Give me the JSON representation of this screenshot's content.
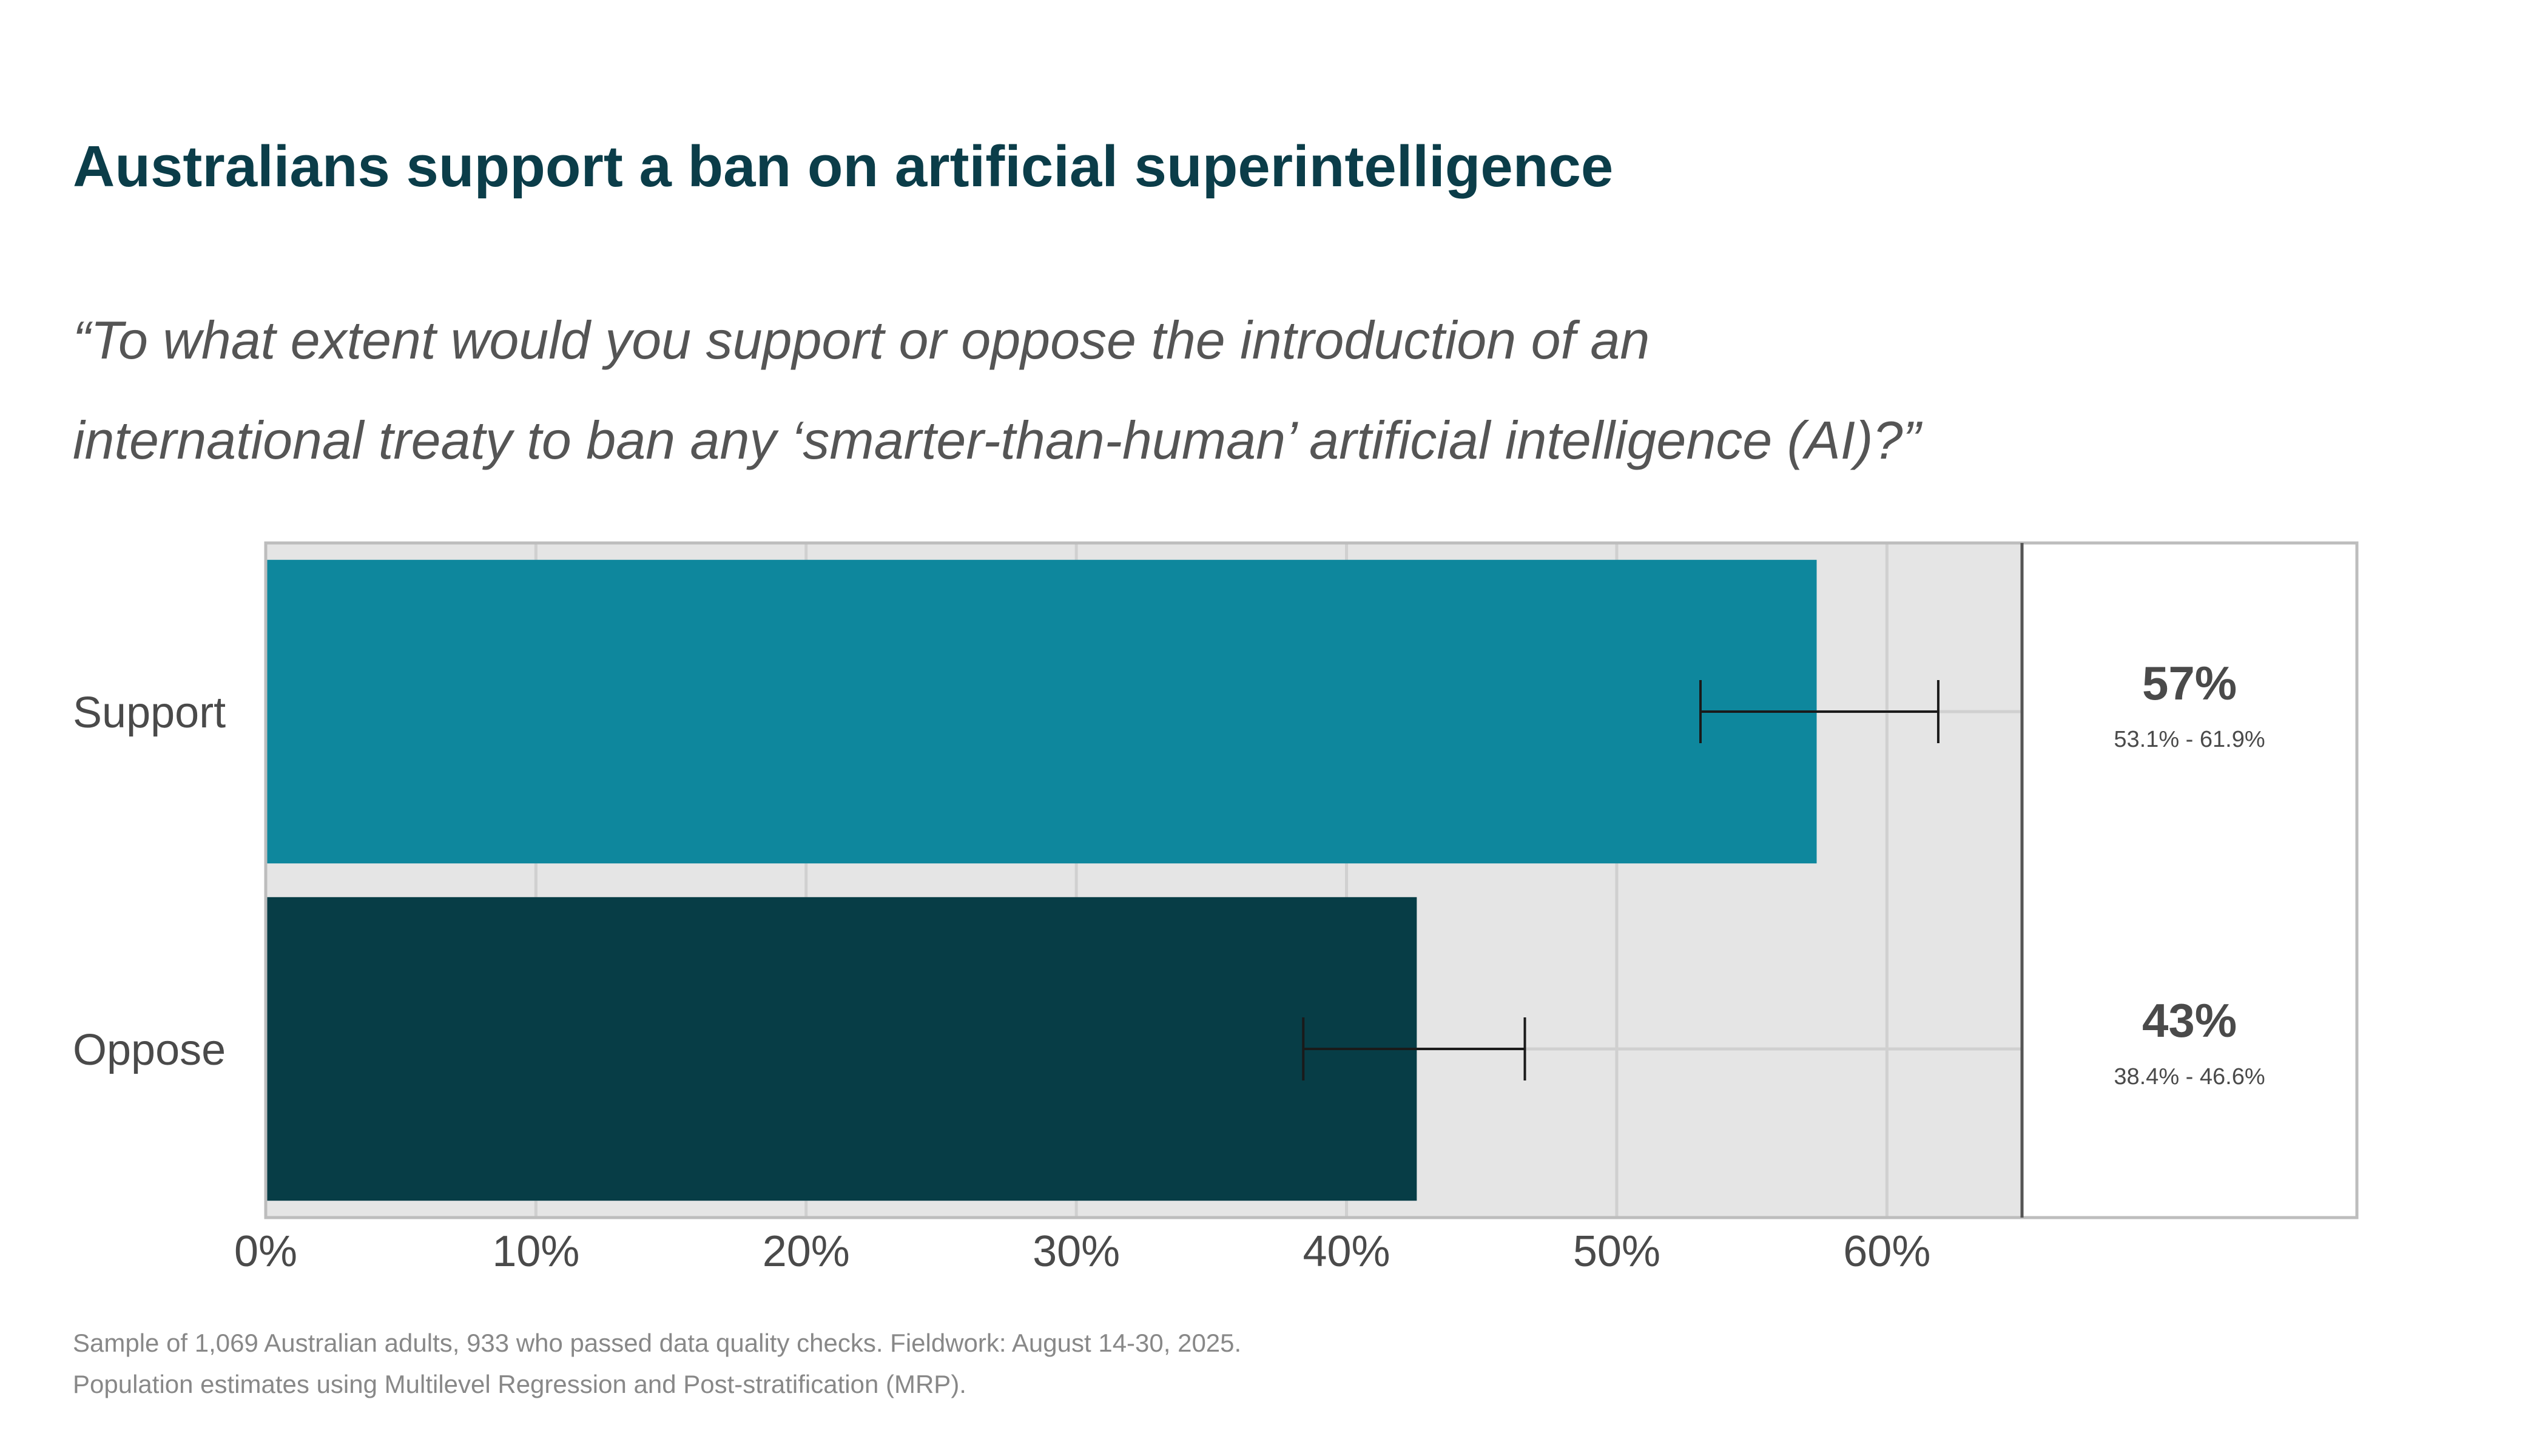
{
  "chart_data": {
    "type": "bar",
    "orientation": "horizontal",
    "title": "Australians support a ban on artificial superintelligence",
    "subtitle_lines": [
      "“To what extent would you support or oppose the introduction of an",
      "international treaty to ban any ‘smarter-than-human’ artificial intelligence (AI)?”"
    ],
    "categories": [
      "Support",
      "Oppose"
    ],
    "values": [
      57.4,
      42.6
    ],
    "ci_low": [
      53.1,
      38.4
    ],
    "ci_high": [
      61.9,
      46.6
    ],
    "value_labels": [
      "57%",
      "43%"
    ],
    "ci_labels": [
      "53.1% - 61.9%",
      "38.4% - 46.6%"
    ],
    "xlim": [
      0,
      65
    ],
    "x_ticks": [
      0,
      10,
      20,
      30,
      40,
      50,
      60
    ],
    "x_tick_labels": [
      "0%",
      "10%",
      "20%",
      "30%",
      "40%",
      "50%",
      "60%"
    ],
    "grid": true,
    "colors": {
      "Support": "#0e879d",
      "Oppose": "#073d46",
      "plot_background": "#e5e5e5",
      "gridline": "#d0d0d0",
      "title": "#0b3d49"
    },
    "footnote_lines": [
      "Sample of 1,069 Australian adults, 933 who passed data quality checks. Fieldwork: August 14-30, 2025.",
      "Population estimates using Multilevel Regression and Post-stratification (MRP)."
    ]
  }
}
